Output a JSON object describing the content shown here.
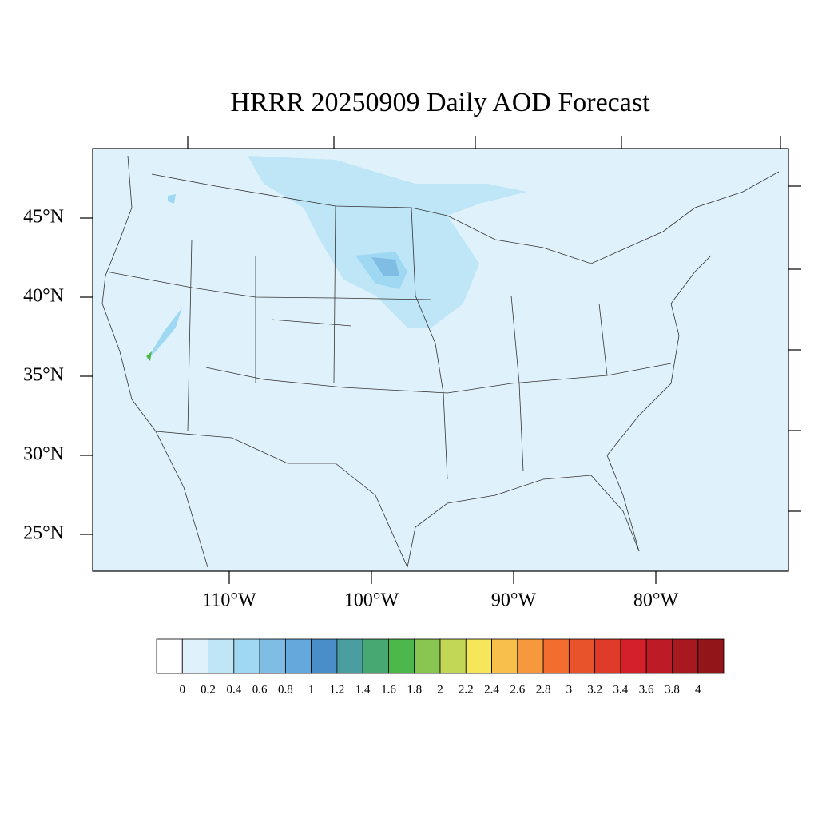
{
  "map": {
    "title": "HRRR 20250909 Daily AOD Forecast",
    "lat_ticks": [
      {
        "value": 45,
        "label": "45°N"
      },
      {
        "value": 40,
        "label": "40°N"
      },
      {
        "value": 35,
        "label": "35°N"
      },
      {
        "value": 30,
        "label": "30°N"
      },
      {
        "value": 25,
        "label": "25°N"
      }
    ],
    "lon_ticks": [
      {
        "value": -110,
        "label": "110°W"
      },
      {
        "value": -100,
        "label": "100°W"
      },
      {
        "value": -90,
        "label": "90°W"
      },
      {
        "value": -80,
        "label": "80°W"
      }
    ],
    "fill_color": "#dff2fb"
  },
  "colorbar": {
    "levels": [
      0,
      0.2,
      0.4,
      0.6,
      0.8,
      1,
      1.2,
      1.4,
      1.6,
      1.8,
      2,
      2.2,
      2.4,
      2.6,
      2.8,
      3,
      3.2,
      3.4,
      3.6,
      3.8,
      4
    ],
    "colors": [
      "#ffffff",
      "#dff2fb",
      "#bfe6f7",
      "#9fd8f3",
      "#80bde4",
      "#65a8db",
      "#4a8ec9",
      "#4a9ea0",
      "#48a872",
      "#4cb74a",
      "#88c651",
      "#c3d756",
      "#f5e65a",
      "#f8bf4a",
      "#f6993e",
      "#f36e2e",
      "#e9532c",
      "#e03a2a",
      "#d3202b",
      "#bd1b25",
      "#a8181f",
      "#921519"
    ]
  }
}
